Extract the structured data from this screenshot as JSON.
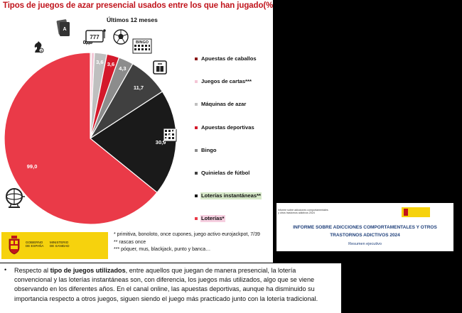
{
  "slide": {
    "title": "Tipos de juegos de azar presencial usados entre los que han jugado(%)",
    "subtitle": "Últimos 12 meses"
  },
  "chart_data": {
    "type": "pie",
    "title": "Tipos de juegos de azar presencial usados entre los que han jugado(%)",
    "subtitle": "Últimos 12 meses",
    "slices": [
      {
        "label": "Apuestas de caballos",
        "value": 0.3,
        "color": "#8b1a1a",
        "value_label": "0,3"
      },
      {
        "label": "Juegos de cartas***",
        "value": 0.9,
        "color": "#f4c6d6",
        "value_label": "0,9"
      },
      {
        "label": "Máquinas de azar",
        "value": 3.6,
        "color": "#bfbfbf",
        "value_label": "3,6"
      },
      {
        "label": "Apuestas deportivas",
        "value": 3.6,
        "color": "#d4192b",
        "value_label": "3,6"
      },
      {
        "label": "Bingo",
        "value": 4.3,
        "color": "#8c8c8c",
        "value_label": "4,3"
      },
      {
        "label": "Quinielas de fútbol",
        "value": 11.7,
        "color": "#404040",
        "value_label": "11,7"
      },
      {
        "label": "Loterías instantáneas**",
        "value": 30.9,
        "color": "#1a1a1a",
        "value_label": "30,9"
      },
      {
        "label": "Loterías*",
        "value": 99.0,
        "color": "#ea3a48",
        "value_label": "99,0"
      }
    ],
    "legend_order": [
      "Apuestas de caballos",
      "Juegos de cartas***",
      "Máquinas de azar",
      "Apuestas deportivas",
      "Bingo",
      "Quinielas de fútbol",
      "Loterías instantáneas**",
      "Loterías*"
    ],
    "legend_position": "right"
  },
  "legend": {
    "items": [
      {
        "label": "Apuestas de caballos",
        "color": "#8b1a1a",
        "highlight": ""
      },
      {
        "label": "Juegos de cartas***",
        "color": "#f4c6d6",
        "highlight": ""
      },
      {
        "label": "Máquinas de azar",
        "color": "#bfbfbf",
        "highlight": ""
      },
      {
        "label": "Apuestas deportivas",
        "color": "#d4192b",
        "highlight": ""
      },
      {
        "label": "Bingo",
        "color": "#8c8c8c",
        "highlight": ""
      },
      {
        "label": "Quinielas de fútbol",
        "color": "#404040",
        "highlight": ""
      },
      {
        "label": "Loterías instantáneas**",
        "color": "#1a1a1a",
        "highlight": "green"
      },
      {
        "label": "Loterías*",
        "color": "#ea3a48",
        "highlight": "pink"
      }
    ]
  },
  "icons": [
    "horse-chess-icon",
    "playing-cards-icon",
    "slot-machine-icon",
    "soccer-ball-icon",
    "bingo-card-icon",
    "football-pools-icon",
    "scratch-card-icon",
    "lottery-drum-icon"
  ],
  "footer": {
    "logo_left_line1": "GOBIERNO",
    "logo_left_line2": "DE ESPAÑA",
    "logo_right_line1": "MINISTERIO",
    "logo_right_line2": "DE SANIDAD",
    "notes": [
      "* primitiva, bonoloto, once cupones, juego activo eurojackpot, 7/39",
      "** rascas once",
      "*** póquer, mus,  blackjack, punto y banca…"
    ]
  },
  "report_card": {
    "small_line1": "Informe sobre adicciones comportamentales",
    "small_line2": "y otros trastornos adictivos 2024",
    "title_line1": "INFORME SOBRE ADICCIONES COMPORTAMENTALES Y OTROS",
    "title_line2": "TRASTORNOS ADICTIVOS 2024",
    "subtitle": "Resumen ejecutivo"
  },
  "body_text": {
    "intro": "Respecto al ",
    "bold": "tipo de juegos utilizados",
    "rest": ", entre aquellos que juegan de manera presencial, la lotería convencional y las loterías instantáneas son, con diferencia, los juegos más utilizados, algo que se viene observando en los diferentes años. En el canal online, las apuestas deportivas, aunque ha disminuido su importancia respecto a otros juegos, siguen siendo el juego más practicado junto con la lotería tradicional."
  },
  "colors": {
    "title_red": "#c0141c",
    "logo_yellow": "#f6d20d",
    "report_blue": "#1e3f7a",
    "background": "#000000"
  }
}
